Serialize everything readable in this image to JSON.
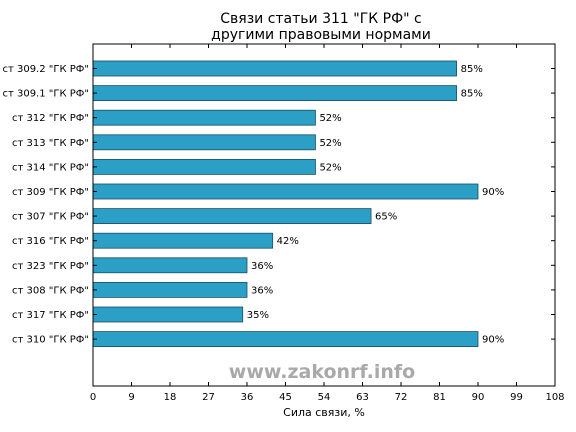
{
  "chart_data": {
    "type": "bar",
    "orientation": "horizontal",
    "title_lines": [
      "Связи статьи 311 \"ГК РФ\" с",
      "другими правовыми нормами"
    ],
    "xlabel": "Сила связи, %",
    "ylabel": "",
    "categories": [
      "ст 309.2 \"ГК РФ\"",
      "ст 309.1 \"ГК РФ\"",
      "ст 312 \"ГК РФ\"",
      "ст 313 \"ГК РФ\"",
      "ст 314 \"ГК РФ\"",
      "ст 309 \"ГК РФ\"",
      "ст 307 \"ГК РФ\"",
      "ст 316 \"ГК РФ\"",
      "ст 323 \"ГК РФ\"",
      "ст 308 \"ГК РФ\"",
      "ст 317 \"ГК РФ\"",
      "ст 310 \"ГК РФ\""
    ],
    "values": [
      85,
      85,
      52,
      52,
      52,
      90,
      65,
      42,
      36,
      36,
      35,
      90
    ],
    "value_labels": [
      "85%",
      "85%",
      "52%",
      "52%",
      "52%",
      "90%",
      "65%",
      "42%",
      "36%",
      "36%",
      "35%",
      "90%"
    ],
    "xticks": [
      0,
      9,
      18,
      27,
      36,
      45,
      54,
      63,
      72,
      81,
      90,
      99,
      108
    ],
    "xlim": [
      0,
      108
    ],
    "grid": false,
    "bar_color": "#2b9fc6",
    "bar_edge_color": "#1a4f63"
  },
  "watermark": "www.zakonrf.info"
}
